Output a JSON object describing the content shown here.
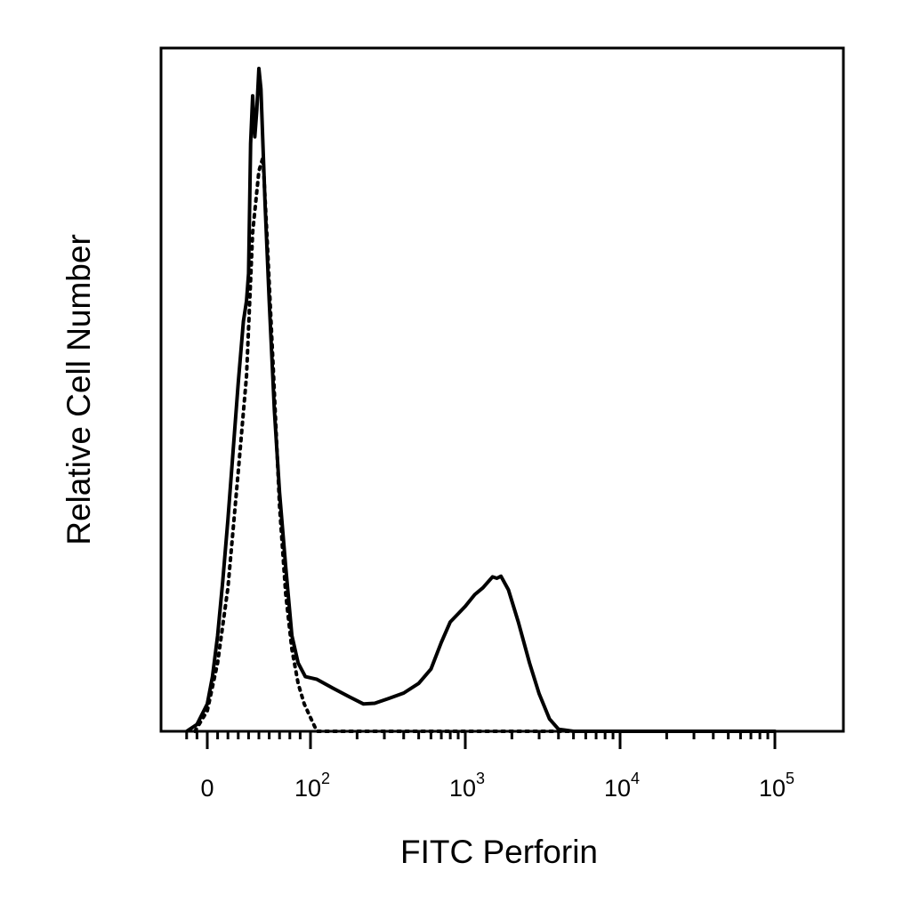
{
  "chart_data": {
    "type": "area",
    "title": "",
    "xlabel": "FITC Perforin",
    "ylabel": "Relative Cell Number",
    "xscale": "biexponential (linear near 0, log above ~10^2)",
    "yscale": "linear (no ticks shown)",
    "grid": false,
    "legend": "none",
    "x_ticks": [
      {
        "value": 0,
        "base": "0",
        "exp": ""
      },
      {
        "value": 100,
        "base": "10",
        "exp": "2"
      },
      {
        "value": 1000,
        "base": "10",
        "exp": "3"
      },
      {
        "value": 10000,
        "base": "10",
        "exp": "4"
      },
      {
        "value": 100000,
        "base": "10",
        "exp": "5"
      }
    ],
    "series": [
      {
        "style": "solid",
        "points": [
          [
            -20,
            0
          ],
          [
            -10,
            1
          ],
          [
            0,
            4
          ],
          [
            5,
            8
          ],
          [
            10,
            14
          ],
          [
            15,
            22
          ],
          [
            20,
            31
          ],
          [
            25,
            41
          ],
          [
            30,
            51
          ],
          [
            35,
            60
          ],
          [
            38,
            63
          ],
          [
            40,
            67
          ],
          [
            42,
            86
          ],
          [
            44,
            93
          ],
          [
            46,
            87
          ],
          [
            48,
            91
          ],
          [
            50,
            97
          ],
          [
            52,
            94
          ],
          [
            56,
            77
          ],
          [
            60,
            63
          ],
          [
            65,
            47
          ],
          [
            70,
            35
          ],
          [
            76,
            24
          ],
          [
            82,
            14
          ],
          [
            88,
            10
          ],
          [
            95,
            8
          ],
          [
            110,
            7.6
          ],
          [
            140,
            6.3
          ],
          [
            180,
            5
          ],
          [
            220,
            4
          ],
          [
            260,
            4.1
          ],
          [
            320,
            4.8
          ],
          [
            400,
            5.6
          ],
          [
            500,
            7
          ],
          [
            600,
            9.1
          ],
          [
            700,
            13
          ],
          [
            800,
            16
          ],
          [
            900,
            17.2
          ],
          [
            1000,
            18.3
          ],
          [
            1150,
            20
          ],
          [
            1300,
            21
          ],
          [
            1500,
            22.6
          ],
          [
            1600,
            22.4
          ],
          [
            1700,
            22.7
          ],
          [
            1900,
            20.7
          ],
          [
            2200,
            16
          ],
          [
            2600,
            10
          ],
          [
            3000,
            5.5
          ],
          [
            3500,
            1.8
          ],
          [
            4000,
            0.3
          ],
          [
            5000,
            0
          ],
          [
            100000,
            0
          ]
        ]
      },
      {
        "style": "dotted",
        "points": [
          [
            -12,
            0
          ],
          [
            0,
            3
          ],
          [
            10,
            10
          ],
          [
            20,
            21
          ],
          [
            30,
            38
          ],
          [
            38,
            52
          ],
          [
            44,
            73
          ],
          [
            50,
            82
          ],
          [
            54,
            84
          ],
          [
            58,
            72
          ],
          [
            64,
            53
          ],
          [
            70,
            33
          ],
          [
            76,
            20
          ],
          [
            82,
            12
          ],
          [
            88,
            7
          ],
          [
            94,
            4
          ],
          [
            100,
            2
          ],
          [
            110,
            0
          ],
          [
            100000,
            0
          ]
        ]
      }
    ]
  }
}
